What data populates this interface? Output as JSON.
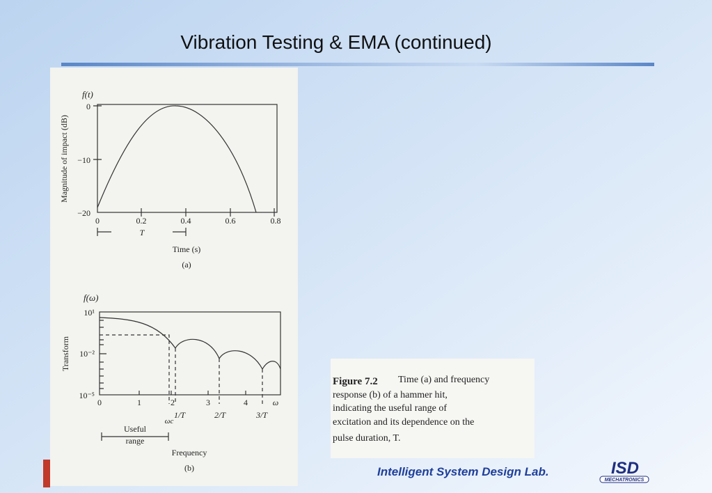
{
  "title": "Vibration Testing & EMA (continued)",
  "figure": {
    "panel_a": {
      "function_label": "f(t)",
      "y_label": "Magnitude of impact (dB)",
      "y_ticks": [
        "0",
        "−10",
        "−20"
      ],
      "x_ticks": [
        "0",
        "0.2",
        "0.4",
        "0.6",
        "0.8"
      ],
      "period_label": "T",
      "x_label": "Time (s)",
      "caption": "(a)"
    },
    "panel_b": {
      "function_label": "f(ω)",
      "y_label": "Transform",
      "y_ticks": [
        "10¹",
        "10⁻²",
        "10⁻⁵"
      ],
      "x_ticks": [
        "0",
        "1",
        "2",
        "3",
        "4",
        "ω"
      ],
      "markers": [
        "1/T",
        "2/T",
        "3/T"
      ],
      "cutoff_label": "ωc",
      "range_label": [
        "Useful",
        "range"
      ],
      "x_label": "Frequency",
      "caption": "(b)"
    }
  },
  "caption": {
    "figure_number": "Figure 7.2",
    "lines": [
      "Time (a) and frequency",
      "response (b) of a hammer hit,",
      "indicating the useful range of",
      "excitation and its dependence on the",
      "pulse duration, T."
    ]
  },
  "footer": {
    "lab": "Intelligent System Design Lab.",
    "logo": "ISD",
    "logo_sub": "MECHATRONICS"
  }
}
